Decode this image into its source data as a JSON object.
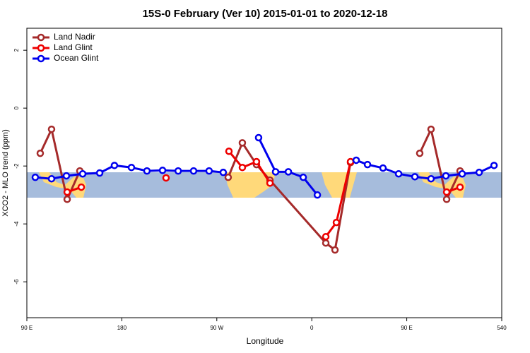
{
  "chart_data": {
    "type": "line",
    "title": "15S-0 February (Ver 10)   2015-01-01 to 2020-12-18",
    "x_label": "Longitude",
    "y_label": "XCO2 - MLO trend (ppm)",
    "xlim": [
      90,
      540
    ],
    "ylim": [
      -7.24,
      2.76
    ],
    "xticks": [
      {
        "value": 90,
        "label": "90 E"
      },
      180,
      {
        "value": 270,
        "label": "90 W"
      },
      {
        "value": 360,
        "label": "0"
      },
      {
        "value": 450,
        "label": "90 E"
      },
      540
    ],
    "yticks": [
      2,
      0,
      -2,
      -4,
      -6
    ],
    "legend": "top-left",
    "series": [
      {
        "name": "Land Nadir",
        "color": "#a52a2a",
        "x": [
          102.7,
          113.4,
          128.2,
          140.2,
          null,
          280.8,
          294.2,
          307.6,
          320.4,
          373.3,
          382.0,
          396.7,
          null,
          462.3,
          473.0,
          487.8,
          500.5
        ],
        "values": [
          -1.56,
          -0.73,
          -3.15,
          -2.17,
          null,
          -2.39,
          -1.2,
          -1.95,
          -2.49,
          -4.66,
          -4.9,
          -1.88,
          null,
          -1.56,
          -0.73,
          -3.15,
          -2.17
        ]
      },
      {
        "name": "Land Glint",
        "color": "#ee0000",
        "x": [
          128.2,
          141.6,
          null,
          221.9,
          null,
          281.5,
          294.2,
          307.6,
          320.4,
          null,
          373.3,
          383.3,
          396.7,
          null,
          487.8,
          500.5
        ],
        "values": [
          -2.9,
          -2.73,
          null,
          -2.41,
          null,
          -1.49,
          -2.05,
          -1.85,
          -2.59,
          null,
          -4.44,
          -3.95,
          -1.85,
          null,
          -2.9,
          -2.73
        ]
      },
      {
        "name": "Ocean Glint",
        "color": "#0000ee",
        "x": [
          98.0,
          113.4,
          127.5,
          142.9,
          159.0,
          173.0,
          189.1,
          203.8,
          218.6,
          233.4,
          248.0,
          262.7,
          276.1,
          null,
          309.6,
          325.7,
          337.8,
          351.9,
          365.3,
          null,
          402.1,
          412.8,
          427.5,
          442.3,
          457.7,
          473.0,
          487.1,
          502.5,
          518.6,
          532.7
        ],
        "values": [
          -2.39,
          -2.44,
          -2.34,
          -2.27,
          -2.24,
          -1.98,
          -2.05,
          -2.17,
          -2.15,
          -2.17,
          -2.17,
          -2.17,
          -2.22,
          null,
          -1.02,
          -2.2,
          -2.2,
          -2.39,
          -3.0,
          null,
          -1.8,
          -1.95,
          -2.07,
          -2.27,
          -2.37,
          -2.44,
          -2.34,
          -2.27,
          -2.22,
          -1.98
        ]
      }
    ]
  }
}
